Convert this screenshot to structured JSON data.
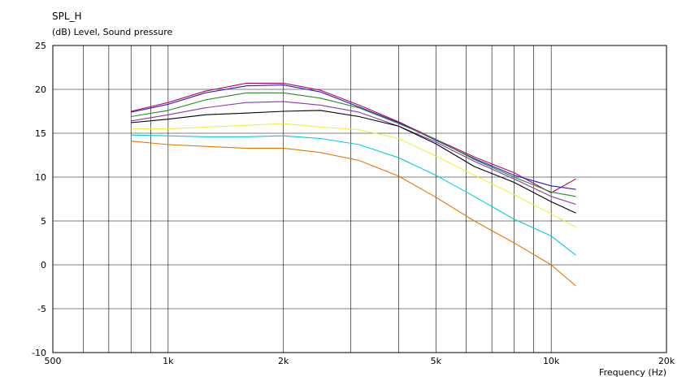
{
  "chart_data": {
    "type": "line",
    "title": "SPL_H",
    "subtitle": "(dB)  Level, Sound pressure",
    "xlabel": "Frequency  (Hz)",
    "ylabel": "",
    "xscale": "log",
    "xlim": [
      500,
      20000
    ],
    "ylim": [
      -10,
      25
    ],
    "grid": true,
    "x_ticks": [
      {
        "value": 500,
        "label": "500"
      },
      {
        "value": 1000,
        "label": "1k"
      },
      {
        "value": 2000,
        "label": "2k"
      },
      {
        "value": 5000,
        "label": "5k"
      },
      {
        "value": 10000,
        "label": "10k"
      },
      {
        "value": 20000,
        "label": "20k"
      }
    ],
    "y_ticks": [
      {
        "value": 25,
        "label": "25"
      },
      {
        "value": 20,
        "label": "20"
      },
      {
        "value": 15,
        "label": "15"
      },
      {
        "value": 10,
        "label": "10"
      },
      {
        "value": 5,
        "label": "5"
      },
      {
        "value": 0,
        "label": "0"
      },
      {
        "value": -5,
        "label": "-5"
      },
      {
        "value": -10,
        "label": "-10"
      }
    ],
    "x_gridlines": [
      600,
      700,
      800,
      900,
      1000,
      2000,
      3000,
      4000,
      5000,
      6000,
      7000,
      8000,
      9000,
      10000
    ],
    "x": [
      800,
      1000,
      1250,
      1600,
      2000,
      2500,
      3150,
      4000,
      5000,
      6300,
      8000,
      10000,
      11600
    ],
    "series": [
      {
        "color": "#c00060",
        "values": [
          17.5,
          18.5,
          19.8,
          20.7,
          20.7,
          19.9,
          18.2,
          16.3,
          14.3,
          12.3,
          10.5,
          8.2,
          9.8
        ]
      },
      {
        "color": "#2020c0",
        "values": [
          17.4,
          18.3,
          19.6,
          20.4,
          20.5,
          19.7,
          18.0,
          16.2,
          14.2,
          12.1,
          10.2,
          9.0,
          8.6
        ]
      },
      {
        "color": "#2a8a2a",
        "values": [
          16.9,
          17.6,
          18.8,
          19.6,
          19.6,
          19.0,
          17.9,
          16.1,
          14.3,
          12.0,
          10.0,
          8.3,
          7.8
        ]
      },
      {
        "color": "#8a3aa8",
        "values": [
          16.4,
          17.1,
          17.9,
          18.5,
          18.6,
          18.2,
          17.4,
          15.8,
          14.0,
          11.8,
          9.8,
          7.8,
          6.9
        ]
      },
      {
        "color": "#000000",
        "values": [
          16.2,
          16.6,
          17.1,
          17.3,
          17.5,
          17.6,
          16.9,
          15.8,
          13.8,
          11.2,
          9.4,
          7.2,
          5.9
        ]
      },
      {
        "color": "#f0f040",
        "values": [
          15.5,
          15.5,
          15.7,
          15.9,
          16.1,
          15.7,
          15.4,
          14.4,
          12.4,
          10.2,
          8.0,
          5.8,
          4.3
        ]
      },
      {
        "color": "#00ccdd",
        "values": [
          14.8,
          14.7,
          14.6,
          14.6,
          14.7,
          14.4,
          13.7,
          12.2,
          10.2,
          7.8,
          5.2,
          3.3,
          1.1
        ]
      },
      {
        "color": "#e07800",
        "values": [
          14.1,
          13.7,
          13.5,
          13.3,
          13.3,
          12.8,
          11.9,
          10.1,
          7.7,
          5.0,
          2.5,
          0.0,
          -2.4
        ]
      }
    ]
  }
}
